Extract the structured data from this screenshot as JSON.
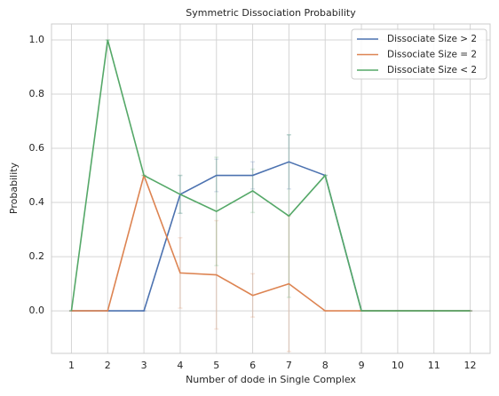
{
  "chart_data": {
    "type": "line",
    "title": "Symmetric Dissociation Probability",
    "x_label": "Number of dode in Single Complex",
    "y_label": "Probability",
    "x": [
      1,
      2,
      3,
      4,
      5,
      6,
      7,
      8,
      9,
      10,
      11,
      12
    ],
    "series": [
      {
        "name": "Dissociate Size > 2",
        "color": "#4c72b0",
        "values": [
          0,
          0,
          0,
          0.43,
          0.5,
          0.5,
          0.55,
          0.5,
          0,
          0,
          0,
          0
        ],
        "errors": [
          0,
          0,
          0,
          0.07,
          0.06,
          0.05,
          0.1,
          0,
          0,
          0,
          0,
          0
        ]
      },
      {
        "name": "Dissociate Size = 2",
        "color": "#dd8452",
        "values": [
          0,
          0,
          0.5,
          0.14,
          0.133,
          0.057,
          0.1,
          0,
          0,
          0,
          0,
          0
        ],
        "errors": [
          0,
          0,
          0,
          0.13,
          0.2,
          0.08,
          0.25,
          0,
          0,
          0,
          0,
          0
        ]
      },
      {
        "name": "Dissociate Size < 2",
        "color": "#55a868",
        "values": [
          0,
          1,
          0.5,
          0.43,
          0.367,
          0.443,
          0.35,
          0.5,
          0,
          0,
          0,
          0
        ],
        "errors": [
          0,
          0,
          0,
          0.07,
          0.2,
          0.08,
          0.3,
          0,
          0,
          0,
          0,
          0
        ]
      }
    ],
    "xlim": [
      0.45,
      12.55
    ],
    "ylim": [
      -0.157,
      1.059
    ],
    "xticks": [
      1,
      2,
      3,
      4,
      5,
      6,
      7,
      8,
      9,
      10,
      11,
      12
    ],
    "yticks": [
      {
        "value": 0,
        "label": "0.0"
      },
      {
        "value": 0.2,
        "label": "0.2"
      },
      {
        "value": 0.4,
        "label": "0.4"
      },
      {
        "value": 0.6,
        "label": "0.6"
      },
      {
        "value": 0.8,
        "label": "0.8"
      },
      {
        "value": 1,
        "label": "1.0"
      }
    ],
    "grid": true,
    "legend": "upper-right"
  }
}
